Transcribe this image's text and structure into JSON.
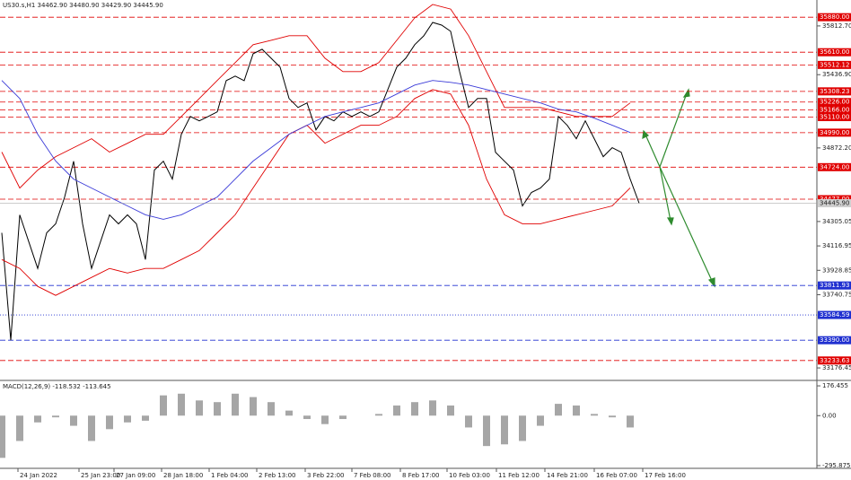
{
  "chart_data": {
    "type": "line",
    "title": "US30.s,H1  34462.90 34480.90 34429.90 34445.90",
    "ylim": [
      33087,
      35978
    ],
    "yticks": [
      {
        "value": 35812.7,
        "label": "35812.70"
      },
      {
        "value": 35436.9,
        "label": "35436.90"
      },
      {
        "value": 34872.2,
        "label": "34872.20"
      },
      34305.05,
      34116.95,
      33928.85,
      33740.75,
      33176.45
    ],
    "xlim": [
      -0.2,
      71.8
    ],
    "xticks": [
      {
        "value": 1.8,
        "label": "24 Jan 2022"
      },
      {
        "value": 8.6,
        "label": "25 Jan 23:00"
      },
      {
        "value": 12.5,
        "label": "27 Jan 09:00"
      },
      {
        "value": 17.8,
        "label": "28 Jan 18:00"
      },
      {
        "value": 23.1,
        "label": "1 Feb 04:00"
      },
      {
        "value": 28.4,
        "label": "2 Feb 13:00"
      },
      {
        "value": 33.8,
        "label": "3 Feb 22:00"
      },
      {
        "value": 39,
        "label": "7 Feb 08:00"
      },
      {
        "value": 44.4,
        "label": "8 Feb 17:00"
      },
      {
        "value": 49.6,
        "label": "10 Feb 03:00"
      },
      {
        "value": 55.1,
        "label": "11 Feb 12:00"
      },
      {
        "value": 60.5,
        "label": "14 Feb 21:00"
      },
      {
        "value": 66,
        "label": "16 Feb 07:00"
      },
      {
        "value": 71.4,
        "label": "17 Feb 16:00"
      }
    ],
    "grid": true,
    "series": [
      {
        "color": "#000000",
        "x": [
          0,
          1,
          2,
          3,
          4,
          5,
          6,
          7,
          8,
          9,
          10,
          11,
          12,
          13,
          14,
          15,
          16,
          17,
          18,
          19,
          20,
          21,
          22,
          23,
          24,
          25,
          26,
          27,
          28,
          29,
          30,
          31,
          32,
          33,
          34,
          35,
          36,
          37,
          38,
          39,
          40,
          41,
          42,
          43,
          44,
          45,
          46,
          47,
          48,
          49,
          50,
          51,
          52,
          53,
          54,
          55,
          56,
          57,
          58,
          59,
          60,
          61,
          62,
          63,
          64,
          65,
          66,
          67,
          68,
          69,
          70,
          71
        ],
        "values": [
          34218,
          33390,
          34356,
          34150,
          33943,
          34218,
          34287,
          34494,
          34770,
          34287,
          33943,
          34150,
          34356,
          34287,
          34356,
          34287,
          34012,
          34702,
          34770,
          34632,
          34977,
          35115,
          35081,
          35115,
          35150,
          35391,
          35426,
          35391,
          35598,
          35633,
          35564,
          35495,
          35253,
          35184,
          35219,
          35012,
          35115,
          35081,
          35150,
          35115,
          35150,
          35115,
          35150,
          35322,
          35495,
          35564,
          35668,
          35736,
          35840,
          35819,
          35771,
          35460,
          35184,
          35253,
          35253,
          34839,
          34770,
          34702,
          34425,
          34529,
          34563,
          34632,
          35115,
          35046,
          34943,
          35081,
          34943,
          34805,
          34874,
          34839,
          34632,
          34446
        ]
      },
      {
        "color": "#e00000",
        "x": [
          0,
          2,
          4,
          6,
          8,
          10,
          12,
          14,
          16,
          18,
          20,
          22,
          24,
          26,
          28,
          30,
          32,
          34,
          36,
          38,
          40,
          42,
          44,
          46,
          48,
          50,
          52,
          54,
          56,
          58,
          60,
          62,
          64,
          66,
          68,
          70
        ],
        "values": [
          34840,
          34563,
          34701,
          34805,
          34874,
          34943,
          34840,
          34908,
          34977,
          34977,
          35115,
          35253,
          35392,
          35530,
          35668,
          35702,
          35737,
          35737,
          35564,
          35461,
          35461,
          35530,
          35702,
          35875,
          35978,
          35943,
          35737,
          35461,
          35184,
          35184,
          35184,
          35150,
          35115,
          35115,
          35115,
          35219
        ]
      },
      {
        "color": "#e00000",
        "x": [
          0,
          2,
          4,
          6,
          8,
          10,
          12,
          14,
          16,
          18,
          20,
          22,
          24,
          26,
          28,
          30,
          32,
          34,
          36,
          38,
          40,
          42,
          44,
          46,
          48,
          50,
          52,
          54,
          56,
          58,
          60,
          62,
          64,
          66,
          68,
          70
        ],
        "values": [
          34012,
          33943,
          33805,
          33736,
          33805,
          33874,
          33943,
          33908,
          33943,
          33943,
          34012,
          34081,
          34218,
          34357,
          34564,
          34771,
          34978,
          35047,
          34909,
          34978,
          35047,
          35047,
          35115,
          35253,
          35322,
          35288,
          35047,
          34632,
          34357,
          34288,
          34288,
          34322,
          34357,
          34391,
          34425,
          34564
        ]
      },
      {
        "color": "#3b3bd8",
        "x": [
          0,
          2,
          4,
          6,
          8,
          10,
          12,
          14,
          16,
          18,
          20,
          22,
          24,
          26,
          28,
          30,
          32,
          34,
          36,
          38,
          40,
          42,
          44,
          46,
          48,
          50,
          52,
          54,
          56,
          58,
          60,
          62,
          64,
          66,
          68,
          70
        ],
        "values": [
          35392,
          35253,
          34978,
          34771,
          34632,
          34563,
          34494,
          34425,
          34357,
          34322,
          34357,
          34425,
          34494,
          34632,
          34771,
          34874,
          34978,
          35047,
          35115,
          35150,
          35184,
          35219,
          35288,
          35357,
          35392,
          35378,
          35357,
          35322,
          35288,
          35253,
          35219,
          35171,
          35150,
          35102,
          35047,
          34991
        ]
      }
    ],
    "levels": [
      {
        "value": 35880,
        "label": "35880.00",
        "color": "#e00000",
        "dash": true
      },
      {
        "value": 35610,
        "label": "35610.00",
        "color": "#e00000",
        "dash": true
      },
      {
        "value": 35512.12,
        "label": "35512.12",
        "color": "#e00000",
        "dash": true
      },
      {
        "value": 35308.23,
        "label": "35308.23",
        "color": "#e00000",
        "dash": true
      },
      {
        "value": 35226,
        "label": "35226.00",
        "color": "#e00000",
        "dash": true
      },
      {
        "value": 35166,
        "label": "35166.00",
        "color": "#e00000",
        "dash": true
      },
      {
        "value": 35110,
        "label": "35110.00",
        "color": "#e00000",
        "dash": true
      },
      {
        "value": 34990,
        "label": "34990.00",
        "color": "#e00000",
        "dash": true
      },
      {
        "value": 34724,
        "label": "34724.00",
        "color": "#e00000",
        "dash": true
      },
      {
        "value": 34477,
        "label": "34477.00",
        "color": "#e00000",
        "dash": true
      },
      {
        "value": 33811.93,
        "label": "33811.93",
        "color": "#2030d0",
        "dash": true
      },
      {
        "value": 33584.59,
        "label": "33584.59",
        "color": "#2030d0",
        "dash": false
      },
      {
        "value": 33390,
        "label": "33390.00",
        "color": "#2030d0",
        "dash": true
      },
      {
        "value": 33233.63,
        "label": "33233.63",
        "color": "#e00000",
        "dash": true
      }
    ],
    "last_price": {
      "value": 34445.9,
      "label": "34445.90"
    },
    "macd": {
      "title": "MACD(12,26,9) -118.532 -113.645",
      "color": "#808080",
      "ylim": [
        -312,
        198
      ],
      "yticks": [
        176.455,
        {
          "value": 0,
          "label": "0.00"
        },
        -295.875
      ],
      "x": [
        0,
        2,
        4,
        6,
        8,
        10,
        12,
        14,
        16,
        18,
        20,
        22,
        24,
        26,
        28,
        30,
        32,
        34,
        36,
        38,
        40,
        42,
        44,
        46,
        48,
        50,
        52,
        54,
        56,
        58,
        60,
        62,
        64,
        66,
        68,
        70
      ],
      "values": [
        -250,
        -150,
        -40,
        -10,
        -60,
        -150,
        -80,
        -40,
        -30,
        120,
        130,
        90,
        80,
        130,
        110,
        80,
        30,
        -20,
        -50,
        -20,
        0,
        10,
        60,
        80,
        90,
        60,
        -70,
        -180,
        -170,
        -150,
        -60,
        70,
        60,
        10,
        -10,
        -70
      ]
    }
  }
}
